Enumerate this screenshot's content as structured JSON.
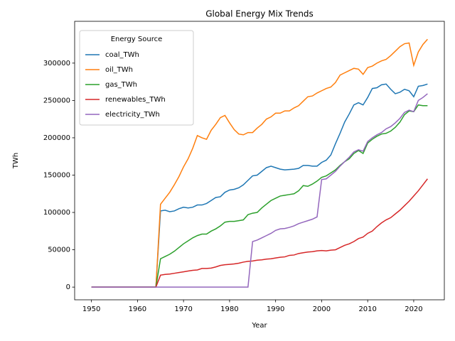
{
  "chart_data": {
    "type": "line",
    "title": "Global Energy Mix Trends",
    "x_label": "Year",
    "y_label": "TWh",
    "x": [
      1950,
      1951,
      1952,
      1953,
      1954,
      1955,
      1956,
      1957,
      1958,
      1959,
      1960,
      1961,
      1962,
      1963,
      1964,
      1965,
      1966,
      1967,
      1968,
      1969,
      1970,
      1971,
      1972,
      1973,
      1974,
      1975,
      1976,
      1977,
      1978,
      1979,
      1980,
      1981,
      1982,
      1983,
      1984,
      1985,
      1986,
      1987,
      1988,
      1989,
      1990,
      1991,
      1992,
      1993,
      1994,
      1995,
      1996,
      1997,
      1998,
      1999,
      2000,
      2001,
      2002,
      2003,
      2004,
      2005,
      2006,
      2007,
      2008,
      2009,
      2010,
      2011,
      2012,
      2013,
      2014,
      2015,
      2016,
      2017,
      2018,
      2019,
      2020,
      2021,
      2022,
      2023
    ],
    "series": [
      {
        "name": "coal_TWh",
        "color": "#1f77b4",
        "values": [
          0,
          0,
          0,
          0,
          0,
          0,
          0,
          0,
          0,
          0,
          0,
          0,
          0,
          0,
          0,
          102000,
          103000,
          101000,
          102000,
          105000,
          107000,
          106000,
          107000,
          110000,
          110000,
          112000,
          116000,
          120000,
          121000,
          127000,
          130000,
          131000,
          133000,
          137000,
          143000,
          149000,
          150000,
          155000,
          160000,
          162000,
          160000,
          158000,
          157000,
          157500,
          158000,
          159000,
          163000,
          163000,
          162000,
          162000,
          167000,
          170000,
          177000,
          192000,
          206000,
          221000,
          232000,
          244000,
          247000,
          244000,
          254000,
          266000,
          267000,
          271000,
          272000,
          265000,
          259000,
          261000,
          265000,
          263000,
          255000,
          269000,
          270000,
          272000
        ]
      },
      {
        "name": "oil_TWh",
        "color": "#ff7f0e",
        "values": [
          0,
          0,
          0,
          0,
          0,
          0,
          0,
          0,
          0,
          0,
          0,
          0,
          0,
          0,
          0,
          111000,
          119000,
          127000,
          137000,
          148000,
          161000,
          172000,
          186000,
          203000,
          200000,
          198000,
          210000,
          218000,
          227000,
          230000,
          220000,
          211000,
          205000,
          204000,
          207000,
          207000,
          213000,
          218000,
          225000,
          228000,
          233000,
          233000,
          236000,
          236000,
          240000,
          243000,
          249000,
          255000,
          256000,
          260000,
          263000,
          266000,
          268000,
          274000,
          284000,
          287000,
          290000,
          293000,
          292000,
          285000,
          294000,
          296000,
          300000,
          303000,
          305000,
          310000,
          316000,
          322000,
          326000,
          327000,
          297000,
          315000,
          325000,
          332000
        ]
      },
      {
        "name": "gas_TWh",
        "color": "#2ca02c",
        "values": [
          0,
          0,
          0,
          0,
          0,
          0,
          0,
          0,
          0,
          0,
          0,
          0,
          0,
          0,
          0,
          38000,
          41000,
          44000,
          48000,
          53000,
          58000,
          62000,
          66000,
          69000,
          71000,
          71000,
          75000,
          78000,
          82000,
          87000,
          88000,
          88000,
          89000,
          90000,
          97000,
          99000,
          100000,
          106000,
          111000,
          116000,
          119000,
          122000,
          123000,
          124000,
          125000,
          129000,
          136000,
          135000,
          138000,
          142000,
          147000,
          149000,
          153000,
          157000,
          163000,
          168000,
          172000,
          179000,
          183000,
          179000,
          193000,
          198000,
          202000,
          205000,
          206000,
          209000,
          214000,
          221000,
          231000,
          236000,
          235000,
          244000,
          243000,
          243000
        ]
      },
      {
        "name": "renewables_TWh",
        "color": "#d62728",
        "values": [
          0,
          0,
          0,
          0,
          0,
          0,
          0,
          0,
          0,
          0,
          0,
          0,
          0,
          0,
          0,
          16000,
          17000,
          17500,
          18500,
          19500,
          20500,
          21500,
          22500,
          23000,
          25000,
          25000,
          25500,
          27000,
          29000,
          30000,
          30500,
          31000,
          32000,
          33500,
          34500,
          35000,
          36000,
          36500,
          37500,
          38000,
          39000,
          40000,
          40500,
          42500,
          43000,
          45000,
          46000,
          47000,
          47500,
          48500,
          49000,
          48500,
          49500,
          50000,
          53000,
          56000,
          58000,
          61000,
          65000,
          67000,
          72000,
          75000,
          81000,
          86000,
          90000,
          93000,
          98000,
          103000,
          109000,
          115000,
          122000,
          129000,
          137000,
          145000
        ]
      },
      {
        "name": "electricity_TWh",
        "color": "#9467bd",
        "values": [
          0,
          0,
          0,
          0,
          0,
          0,
          0,
          0,
          0,
          0,
          0,
          0,
          0,
          0,
          0,
          0,
          0,
          0,
          0,
          0,
          0,
          0,
          0,
          0,
          0,
          0,
          0,
          0,
          0,
          0,
          0,
          0,
          0,
          0,
          0,
          61000,
          63000,
          66000,
          69000,
          72000,
          76000,
          78000,
          78500,
          80000,
          82000,
          85000,
          87000,
          89000,
          91000,
          94000,
          144000,
          145000,
          150000,
          155000,
          162000,
          168000,
          174000,
          181000,
          184000,
          182000,
          195000,
          200000,
          204000,
          207000,
          212000,
          215000,
          220000,
          226000,
          234000,
          237000,
          235000,
          250000,
          254000,
          259000
        ]
      }
    ],
    "xlim": [
      1946.35,
      2026.65
    ],
    "xticks": [
      1950,
      1960,
      1970,
      1980,
      1990,
      2000,
      2010,
      2020
    ],
    "ylim": [
      -17000,
      356000
    ],
    "yticks": [
      0,
      50000,
      100000,
      150000,
      200000,
      250000,
      300000
    ],
    "grid": false,
    "legend_title": "Energy Source",
    "legend_position": "upper left"
  }
}
